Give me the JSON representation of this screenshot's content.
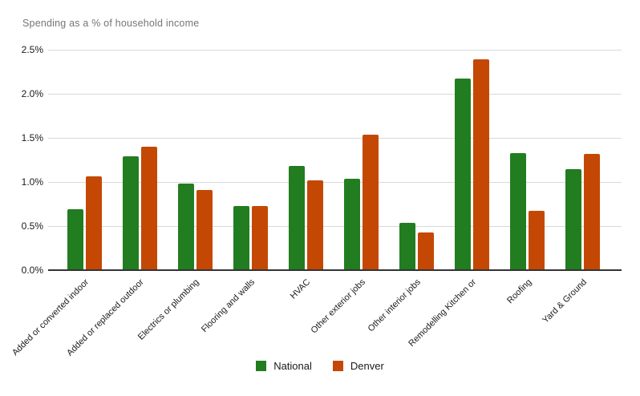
{
  "title": "Spending as a % of household income",
  "colors": {
    "national": "#227d20",
    "denver": "#c44804",
    "title_text": "#757575",
    "gridline": "#d9d9d9",
    "axis_line": "#333333",
    "label_text": "#1a1a1a"
  },
  "chart_data": {
    "type": "bar",
    "title": "Spending as a % of household income",
    "categories": [
      "Added or converted indoor",
      "Added or replaced outdoor",
      "Electrics or plumbing",
      "Flooring and walls",
      "HVAC",
      "Other exterior jobs",
      "Other interior jobs",
      "Remodelling Kitchen or",
      "Roofing",
      "Yard & Ground"
    ],
    "series": [
      {
        "name": "National",
        "color": "#227d20",
        "values": [
          0.69,
          1.29,
          0.98,
          0.73,
          1.18,
          1.04,
          0.54,
          2.17,
          1.33,
          1.15
        ]
      },
      {
        "name": "Denver",
        "color": "#c44804",
        "values": [
          1.06,
          1.4,
          0.91,
          0.73,
          1.02,
          1.54,
          0.43,
          2.39,
          0.67,
          1.32
        ]
      }
    ],
    "xlabel": "",
    "ylabel": "",
    "ylim": [
      0,
      2.5
    ],
    "y_tick_step": 0.5,
    "y_tick_labels": [
      "0.0%",
      "0.5%",
      "1.0%",
      "1.5%",
      "2.0%",
      "2.5%"
    ],
    "grid": true,
    "legend_position": "bottom"
  },
  "legend": {
    "items": [
      {
        "label": "National",
        "color": "#227d20"
      },
      {
        "label": "Denver",
        "color": "#c44804"
      }
    ]
  }
}
